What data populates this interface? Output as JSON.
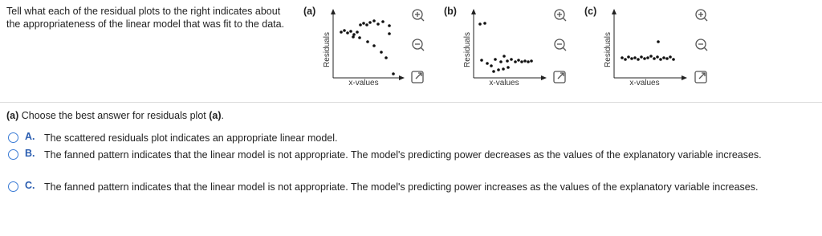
{
  "prompt": "Tell what each of the residual plots to the right indicates about the appropriateness of the linear model that was fit to the data.",
  "plots": [
    {
      "label": "(a)",
      "y_label": "Residuals",
      "x_label": "x-values"
    },
    {
      "label": "(b)",
      "y_label": "Residuals",
      "x_label": "x-values"
    },
    {
      "label": "(c)",
      "y_label": "Residuals",
      "x_label": "x-values"
    }
  ],
  "question": {
    "lead": "(a)",
    "text": " Choose the best answer for residuals plot ",
    "ref": "(a)",
    "end": "."
  },
  "options": [
    {
      "letter": "A.",
      "text": "The scattered residuals plot indicates an appropriate linear model."
    },
    {
      "letter": "B.",
      "text": "The fanned pattern indicates that the linear model is not appropriate. The model's predicting power decreases as the values of the explanatory variable increases."
    },
    {
      "letter": "C.",
      "text": "The fanned pattern indicates that the linear model is not appropriate. The model's predicting power increases as the values of the explanatory variable increases."
    }
  ]
}
